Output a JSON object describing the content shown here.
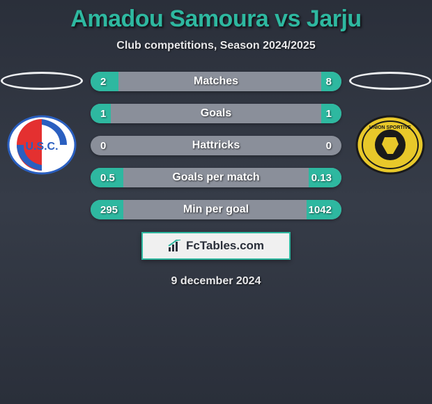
{
  "header": {
    "title": "Amadou Samoura vs Jarju",
    "subtitle": "Club competitions, Season 2024/2025",
    "title_color": "#2eb8a0"
  },
  "left_club": {
    "name": "USC",
    "primary_color": "#e43030",
    "secondary_color": "#2a5fc0",
    "bg_color": "#ffffff"
  },
  "right_club": {
    "name": "USQ",
    "primary_color": "#e8c82a",
    "secondary_color": "#1a1a1a",
    "bg_color": "#e8c82a"
  },
  "stats": {
    "type": "comparison_bars",
    "bar_bg": "#8a8f9a",
    "accent_color": "#2eb8a0",
    "rows": [
      {
        "label": "Matches",
        "left": "2",
        "right": "8",
        "left_pct": 11,
        "right_pct": 8
      },
      {
        "label": "Goals",
        "left": "1",
        "right": "1",
        "left_pct": 8,
        "right_pct": 8
      },
      {
        "label": "Hattricks",
        "left": "0",
        "right": "0",
        "left_pct": 0,
        "right_pct": 0
      },
      {
        "label": "Goals per match",
        "left": "0.5",
        "right": "0.13",
        "left_pct": 13,
        "right_pct": 13
      },
      {
        "label": "Min per goal",
        "left": "295",
        "right": "1042",
        "left_pct": 13,
        "right_pct": 14
      }
    ]
  },
  "brand": {
    "text": "FcTables.com"
  },
  "footer": {
    "date": "9 december 2024"
  }
}
